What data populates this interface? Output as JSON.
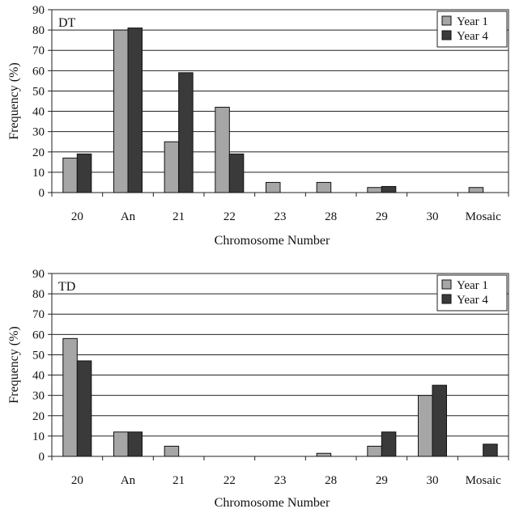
{
  "chart_data": [
    {
      "type": "bar",
      "panel_label": "DT",
      "categories": [
        "20",
        "An",
        "21",
        "22",
        "23",
        "28",
        "29",
        "30",
        "Mosaic"
      ],
      "series": [
        {
          "name": "Year 1",
          "color": "#a6a6a6",
          "values": [
            17,
            80,
            25,
            42,
            5,
            5,
            2.5,
            0,
            2.5
          ]
        },
        {
          "name": "Year 4",
          "color": "#3a3a3a",
          "values": [
            19,
            81,
            59,
            19,
            0,
            0,
            3,
            0,
            0
          ]
        }
      ],
      "xlabel": "Chromosome Number",
      "ylabel": "Frequency (%)",
      "ylim": [
        0,
        90
      ],
      "yticks": [
        "0",
        "10",
        "20",
        "30",
        "40",
        "50",
        "60",
        "70",
        "80",
        "90"
      ],
      "grid": true,
      "legend_position": "top-right"
    },
    {
      "type": "bar",
      "panel_label": "TD",
      "categories": [
        "20",
        "An",
        "21",
        "22",
        "23",
        "28",
        "29",
        "30",
        "Mosaic"
      ],
      "series": [
        {
          "name": "Year 1",
          "color": "#a6a6a6",
          "values": [
            58,
            12,
            5,
            0,
            0,
            1.5,
            5,
            30,
            0
          ]
        },
        {
          "name": "Year 4",
          "color": "#3a3a3a",
          "values": [
            47,
            12,
            0,
            0,
            0,
            0,
            12,
            35,
            6
          ]
        }
      ],
      "xlabel": "Chromosome Number",
      "ylabel": "Frequency (%)",
      "ylim": [
        0,
        90
      ],
      "yticks": [
        "0",
        "10",
        "20",
        "30",
        "40",
        "50",
        "60",
        "70",
        "80",
        "90"
      ],
      "grid": true,
      "legend_position": "top-right"
    }
  ]
}
